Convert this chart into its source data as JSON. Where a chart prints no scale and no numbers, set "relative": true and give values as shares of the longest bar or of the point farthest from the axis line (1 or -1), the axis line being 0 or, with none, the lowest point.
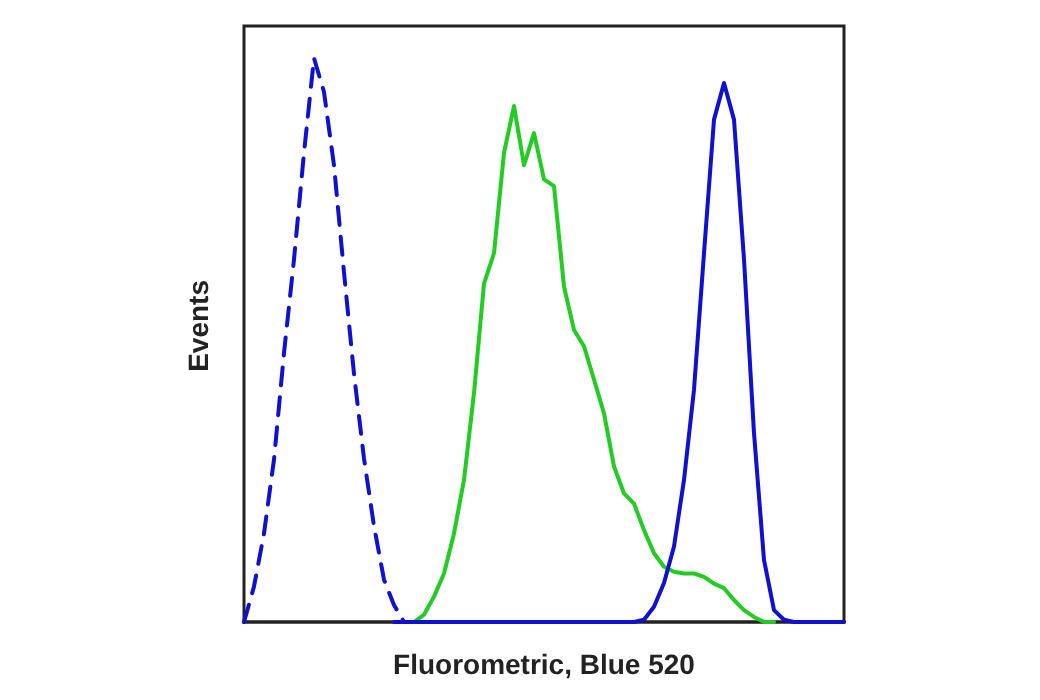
{
  "chart_data": {
    "type": "line",
    "xlabel": "Fluorometric, Blue 520",
    "ylabel": "Events",
    "relative": true,
    "grid": false,
    "categories": [
      null,
      null,
      null,
      null,
      null,
      null,
      null,
      null,
      null,
      null,
      null,
      null,
      null,
      null,
      null,
      null,
      null,
      null,
      null,
      null,
      null,
      null,
      null,
      null,
      null,
      null,
      null,
      null,
      null,
      null,
      null,
      null,
      null,
      null,
      null,
      null,
      null,
      null,
      null,
      null,
      null,
      null,
      null,
      null,
      null,
      null,
      null,
      null,
      null,
      null,
      null,
      null,
      null,
      null,
      null,
      null,
      null,
      null,
      null,
      null,
      null
    ],
    "series": [
      {
        "color": "#1010d0",
        "line_style": "dashed",
        "values": [
          0,
          0.063,
          0.157,
          0.288,
          0.477,
          0.643,
          0.832,
          1,
          0.94,
          0.81,
          0.62,
          0.44,
          0.29,
          0.17,
          0.075,
          0.03,
          0,
          0,
          null,
          null,
          null,
          null,
          null,
          null,
          null,
          null,
          null,
          null,
          null,
          null,
          null,
          null,
          null,
          null,
          null,
          null,
          null,
          null,
          null,
          null,
          null,
          null,
          null,
          null,
          null,
          null,
          null,
          null,
          null,
          null,
          null,
          null,
          null,
          null,
          null,
          null,
          null,
          null,
          null,
          null,
          null
        ]
      },
      {
        "color": "#22cc22",
        "line_style": "solid",
        "values": [
          null,
          null,
          null,
          null,
          null,
          null,
          null,
          null,
          null,
          null,
          null,
          null,
          null,
          null,
          null,
          null,
          0,
          0,
          0.013,
          0.045,
          0.086,
          0.157,
          0.252,
          0.406,
          0.6,
          0.654,
          0.832,
          0.915,
          0.81,
          0.867,
          0.785,
          0.773,
          0.595,
          0.518,
          0.489,
          0.43,
          0.37,
          0.276,
          0.228,
          0.21,
          0.163,
          0.122,
          0.098,
          0.089,
          0.086,
          0.086,
          0.08,
          0.068,
          0.06,
          0.039,
          0.021,
          0.009,
          0,
          0,
          null,
          null,
          null,
          null,
          null,
          null,
          null
        ]
      },
      {
        "color": "#1010d0",
        "line_style": "solid",
        "values": [
          null,
          null,
          null,
          null,
          null,
          null,
          null,
          null,
          null,
          null,
          null,
          null,
          null,
          null,
          null,
          0,
          0,
          0,
          0,
          0,
          0,
          0,
          0,
          0,
          0,
          0,
          0,
          0,
          0,
          0,
          0,
          0,
          0,
          0,
          0,
          0,
          0,
          0,
          0,
          0,
          0.004,
          0.027,
          0.069,
          0.134,
          0.252,
          0.412,
          0.654,
          0.891,
          0.956,
          0.891,
          0.643,
          0.335,
          0.11,
          0.021,
          0.004,
          0,
          0,
          0,
          0,
          0,
          0
        ]
      }
    ]
  }
}
